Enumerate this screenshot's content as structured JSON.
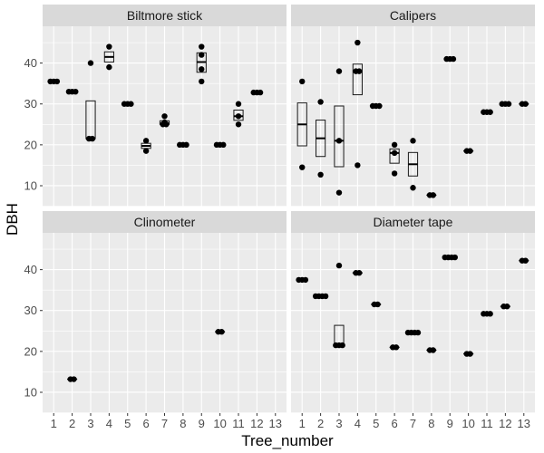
{
  "chart_data": {
    "type": "scatter",
    "overlay": "boxplot",
    "layout": "facet_wrap 2x2",
    "xlabel": "Tree_number",
    "ylabel": "DBH",
    "x_ticks": [
      1,
      2,
      3,
      4,
      5,
      6,
      7,
      8,
      9,
      10,
      11,
      12,
      13
    ],
    "y_ticks": [
      10,
      20,
      30,
      40
    ],
    "xlim": [
      0.4,
      13.6
    ],
    "ylim": [
      4.9,
      49
    ],
    "grid": true,
    "colors": {
      "panel_background": "#ebebeb",
      "strip_background": "#d9d9d9",
      "points": "#000000"
    },
    "panels": [
      {
        "name": "Biltmore stick",
        "points": [
          [
            1,
            35.5
          ],
          [
            1,
            35.5
          ],
          [
            1,
            35.5
          ],
          [
            2,
            33
          ],
          [
            2,
            33
          ],
          [
            2,
            33
          ],
          [
            3,
            40
          ],
          [
            3,
            21.5
          ],
          [
            3,
            21.5
          ],
          [
            4,
            44
          ],
          [
            4,
            39
          ],
          [
            5,
            30
          ],
          [
            5,
            30
          ],
          [
            5,
            30
          ],
          [
            6,
            21
          ],
          [
            6,
            18.5
          ],
          [
            7,
            27
          ],
          [
            7,
            25.5
          ],
          [
            7,
            25
          ],
          [
            7,
            25
          ],
          [
            8,
            20
          ],
          [
            8,
            20
          ],
          [
            8,
            20
          ],
          [
            9,
            44
          ],
          [
            9,
            42
          ],
          [
            9,
            38.5
          ],
          [
            9,
            35.5
          ],
          [
            10,
            20
          ],
          [
            10,
            20
          ],
          [
            10,
            20
          ],
          [
            11,
            30
          ],
          [
            11,
            27
          ],
          [
            11,
            25
          ],
          [
            12,
            32.8
          ],
          [
            12,
            32.8
          ],
          [
            12,
            32.8
          ]
        ]
      },
      {
        "name": "Calipers",
        "points": [
          [
            1,
            35.5
          ],
          [
            1,
            14.5
          ],
          [
            2,
            30.5
          ],
          [
            2,
            12.7
          ],
          [
            3,
            38
          ],
          [
            3,
            21
          ],
          [
            3,
            8.3
          ],
          [
            4,
            45
          ],
          [
            4,
            38
          ],
          [
            4,
            38
          ],
          [
            4,
            15
          ],
          [
            5,
            29.5
          ],
          [
            5,
            29.5
          ],
          [
            5,
            29.5
          ],
          [
            6,
            20
          ],
          [
            6,
            18
          ],
          [
            6,
            13
          ],
          [
            7,
            21
          ],
          [
            7,
            9.5
          ],
          [
            8,
            7.7
          ],
          [
            8,
            7.7
          ],
          [
            9,
            41
          ],
          [
            9,
            41
          ],
          [
            9,
            41
          ],
          [
            10,
            18.5
          ],
          [
            10,
            18.5
          ],
          [
            11,
            28
          ],
          [
            11,
            28
          ],
          [
            11,
            28
          ],
          [
            12,
            30
          ],
          [
            12,
            30
          ],
          [
            12,
            30
          ],
          [
            13,
            30
          ],
          [
            13,
            30
          ]
        ]
      },
      {
        "name": "Clinometer",
        "points": [
          [
            2,
            13.2
          ],
          [
            2,
            13.2
          ],
          [
            10,
            24.8
          ],
          [
            10,
            24.8
          ]
        ]
      },
      {
        "name": "Diameter tape",
        "points": [
          [
            1,
            37.5
          ],
          [
            1,
            37.5
          ],
          [
            1,
            37.5
          ],
          [
            2,
            33.5
          ],
          [
            2,
            33.5
          ],
          [
            2,
            33.5
          ],
          [
            2,
            33.5
          ],
          [
            3,
            41
          ],
          [
            3,
            21.5
          ],
          [
            3,
            21.5
          ],
          [
            3,
            21.5
          ],
          [
            4,
            39.2
          ],
          [
            4,
            39.2
          ],
          [
            5,
            31.5
          ],
          [
            5,
            31.5
          ],
          [
            6,
            21
          ],
          [
            6,
            21
          ],
          [
            7,
            24.6
          ],
          [
            7,
            24.6
          ],
          [
            7,
            24.6
          ],
          [
            7,
            24.6
          ],
          [
            8,
            20.3
          ],
          [
            8,
            20.3
          ],
          [
            9,
            43
          ],
          [
            9,
            43
          ],
          [
            9,
            43
          ],
          [
            9,
            43
          ],
          [
            10,
            19.4
          ],
          [
            10,
            19.4
          ],
          [
            11,
            29.2
          ],
          [
            11,
            29.2
          ],
          [
            11,
            29.2
          ],
          [
            12,
            31
          ],
          [
            12,
            31
          ],
          [
            13,
            42.2
          ],
          [
            13,
            42.2
          ]
        ]
      }
    ]
  }
}
